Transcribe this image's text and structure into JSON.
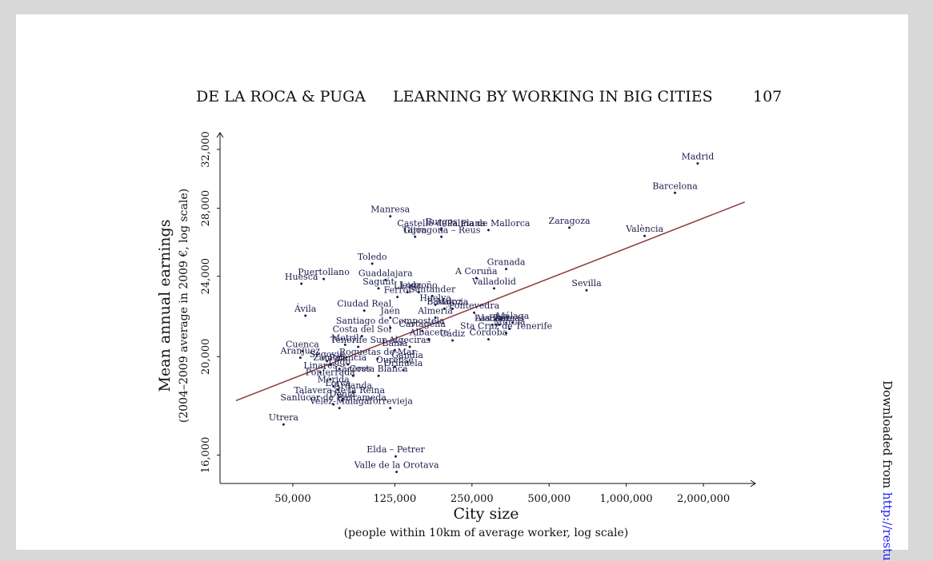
{
  "header": {
    "authors": "DE LA ROCA & PUGA",
    "title": "LEARNING BY WORKING IN BIG CITIES",
    "page_number": "107"
  },
  "side_note": {
    "prefix": "Downloaded from ",
    "link": "http://restu"
  },
  "colors": {
    "points": "#1d1d4e",
    "fit_line": "#8b3a3a",
    "axis": "#111111"
  },
  "chart_data": {
    "type": "scatter",
    "xlabel": "City size",
    "xlabel_sub": "(people within 10km of average worker, log scale)",
    "ylabel": "Mean annual earnings",
    "ylabel_sub": "(2004–2009 average in 2009 €, log scale)",
    "x_scale": "log",
    "y_scale": "log",
    "xlim": [
      26000,
      3100000
    ],
    "ylim": [
      15000,
      33000
    ],
    "x_ticks": [
      50000,
      125000,
      250000,
      500000,
      1000000,
      2000000
    ],
    "x_tick_labels": [
      "50,000",
      "125,000",
      "250,000",
      "500,000",
      "1,000,000",
      "2,000,000"
    ],
    "y_ticks": [
      16000,
      20000,
      24000,
      28000,
      32000
    ],
    "y_tick_labels": [
      "16,000",
      "20,000",
      "24,000",
      "28,000",
      "32,000"
    ],
    "fit_line": {
      "x": [
        30000,
        2900000
      ],
      "y": [
        18100,
        28400
      ]
    },
    "points": [
      {
        "name": "Madrid",
        "x": 1900000,
        "y": 31000
      },
      {
        "name": "Barcelona",
        "x": 1550000,
        "y": 29000
      },
      {
        "name": "València",
        "x": 1180000,
        "y": 26300
      },
      {
        "name": "Zaragoza",
        "x": 600000,
        "y": 26800
      },
      {
        "name": "Sevilla",
        "x": 700000,
        "y": 23250
      },
      {
        "name": "Manresa",
        "x": 120000,
        "y": 27500
      },
      {
        "name": "Burgos",
        "x": 190000,
        "y": 26750
      },
      {
        "name": "Castelló de la Plana",
        "x": 190000,
        "y": 26650
      },
      {
        "name": "Palma de Mallorca",
        "x": 290000,
        "y": 26650
      },
      {
        "name": "Gijón",
        "x": 150000,
        "y": 26250
      },
      {
        "name": "Tarragona – Reus",
        "x": 190000,
        "y": 26250
      },
      {
        "name": "Toledo",
        "x": 102000,
        "y": 24700
      },
      {
        "name": "Granada",
        "x": 340000,
        "y": 24400
      },
      {
        "name": "A Coruña",
        "x": 260000,
        "y": 23900
      },
      {
        "name": "Puertollano",
        "x": 66000,
        "y": 23850
      },
      {
        "name": "Huesca",
        "x": 54000,
        "y": 23600
      },
      {
        "name": "Guadalajara",
        "x": 115000,
        "y": 23800
      },
      {
        "name": "Saguńt",
        "x": 108000,
        "y": 23350
      },
      {
        "name": "Valladolid",
        "x": 305000,
        "y": 23350
      },
      {
        "name": "Lleida",
        "x": 140000,
        "y": 23150
      },
      {
        "name": "Logroño",
        "x": 155000,
        "y": 23150
      },
      {
        "name": "Ferrol",
        "x": 128000,
        "y": 22900
      },
      {
        "name": "Santander",
        "x": 175000,
        "y": 22950
      },
      {
        "name": "Huelva",
        "x": 180000,
        "y": 22500
      },
      {
        "name": "Badajoz",
        "x": 195000,
        "y": 22300
      },
      {
        "name": "Murcia",
        "x": 210000,
        "y": 22300
      },
      {
        "name": "Pontevedra",
        "x": 255000,
        "y": 22100
      },
      {
        "name": "Ciudad Real",
        "x": 95000,
        "y": 22200
      },
      {
        "name": "Ávila",
        "x": 56000,
        "y": 21950
      },
      {
        "name": "Jaén",
        "x": 120000,
        "y": 21850
      },
      {
        "name": "Almería",
        "x": 180000,
        "y": 21850
      },
      {
        "name": "Alacant",
        "x": 300000,
        "y": 21500
      },
      {
        "name": "Elx",
        "x": 310000,
        "y": 21500
      },
      {
        "name": "Las Palmas",
        "x": 320000,
        "y": 21500
      },
      {
        "name": "Málaga",
        "x": 360000,
        "y": 21600
      },
      {
        "name": "Santiago de Compostela",
        "x": 120000,
        "y": 21350
      },
      {
        "name": "Cartagena",
        "x": 160000,
        "y": 21200
      },
      {
        "name": "Murcia",
        "x": 350000,
        "y": 21300
      },
      {
        "name": "Sta Cruz de Tenerife",
        "x": 340000,
        "y": 21100
      },
      {
        "name": "Costa del Sol",
        "x": 93000,
        "y": 20950
      },
      {
        "name": "Córdoba",
        "x": 290000,
        "y": 20800
      },
      {
        "name": "Albacete",
        "x": 170000,
        "y": 20800
      },
      {
        "name": "Cádiz",
        "x": 210000,
        "y": 20750
      },
      {
        "name": "Motril",
        "x": 80000,
        "y": 20550
      },
      {
        "name": "Tenerife Sur",
        "x": 90000,
        "y": 20450
      },
      {
        "name": "Algeciras",
        "x": 143000,
        "y": 20450
      },
      {
        "name": "Bahía",
        "x": 125000,
        "y": 20300
      },
      {
        "name": "Cuenca",
        "x": 54500,
        "y": 20250
      },
      {
        "name": "Aranjuez",
        "x": 53500,
        "y": 19950
      },
      {
        "name": "Segovia",
        "x": 68000,
        "y": 19800
      },
      {
        "name": "Roquetas de Mar",
        "x": 107000,
        "y": 19900
      },
      {
        "name": "Gandía",
        "x": 140000,
        "y": 19750
      },
      {
        "name": "Zamora",
        "x": 70000,
        "y": 19650
      },
      {
        "name": "Palencia",
        "x": 82000,
        "y": 19650
      },
      {
        "name": "Ourense",
        "x": 125000,
        "y": 19550
      },
      {
        "name": "Lugo",
        "x": 76000,
        "y": 19450
      },
      {
        "name": "Linares",
        "x": 64000,
        "y": 19300
      },
      {
        "name": "Orihuela",
        "x": 135000,
        "y": 19400
      },
      {
        "name": "Cáceres",
        "x": 86000,
        "y": 19150
      },
      {
        "name": "Costa Blanca",
        "x": 108000,
        "y": 19150
      },
      {
        "name": "Ponferrada",
        "x": 70000,
        "y": 19000
      },
      {
        "name": "Mérida",
        "x": 72000,
        "y": 18700
      },
      {
        "name": "Lorca",
        "x": 75000,
        "y": 18550
      },
      {
        "name": "Arganda",
        "x": 86000,
        "y": 18450
      },
      {
        "name": "Talavera de la Reina",
        "x": 76000,
        "y": 18250
      },
      {
        "name": "Denia",
        "x": 78000,
        "y": 18100
      },
      {
        "name": "Sanlúcar de Barrameda",
        "x": 72000,
        "y": 17950
      },
      {
        "name": "Vélez-Málaga",
        "x": 76000,
        "y": 17800
      },
      {
        "name": "Torrevieja",
        "x": 120000,
        "y": 17800
      },
      {
        "name": "Utrera",
        "x": 46000,
        "y": 17150
      },
      {
        "name": "Elda – Petrer",
        "x": 126000,
        "y": 15950
      },
      {
        "name": "Valle de la Orotava",
        "x": 127000,
        "y": 15400
      }
    ]
  }
}
